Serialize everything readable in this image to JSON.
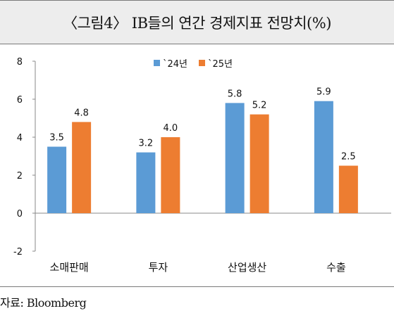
{
  "title": "〈그림4〉 IB들의 연간 경제지표 전망치(%)",
  "source": "자료: Bloomberg",
  "chart_data": {
    "type": "bar",
    "categories": [
      "소매판매",
      "투자",
      "산업생산",
      "수출"
    ],
    "series": [
      {
        "name": "`24년",
        "color": "#5b9bd5",
        "values": [
          3.5,
          3.2,
          5.8,
          5.9
        ]
      },
      {
        "name": "`25년",
        "color": "#ed7d31",
        "values": [
          4.8,
          4.0,
          5.2,
          2.5
        ]
      }
    ],
    "yticks": [
      -2,
      0,
      2,
      4,
      6,
      8
    ],
    "ylim": [
      -2,
      8
    ],
    "legend": "top-center",
    "grid": false
  }
}
